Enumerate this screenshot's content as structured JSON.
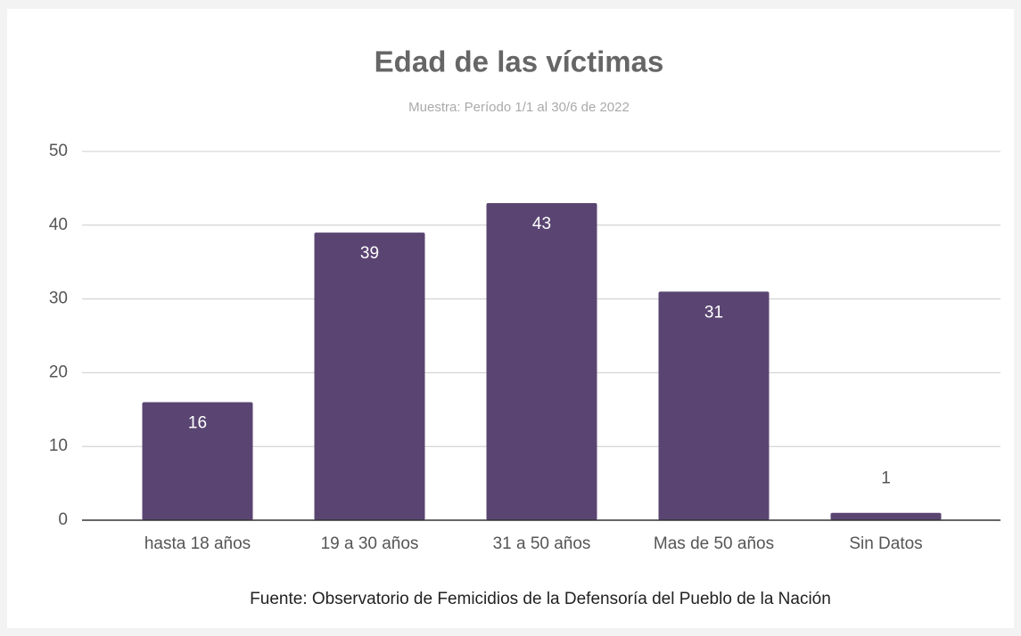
{
  "chart_data": {
    "type": "bar",
    "title": "Edad de las víctimas",
    "subtitle": "Muestra: Período 1/1 al 30/6 de 2022",
    "categories": [
      "hasta 18 años",
      "19 a 30 años",
      "31 a 50 años",
      "Mas de 50 años",
      "Sin Datos"
    ],
    "values": [
      16,
      39,
      43,
      31,
      1
    ],
    "color": "#5a4572",
    "ylim": [
      0,
      50
    ],
    "yticks": [
      0,
      10,
      20,
      30,
      40,
      50
    ],
    "grid": true,
    "source": "Fuente: Observatorio de Femicidios de la Defensoría del Pueblo de la Nación"
  }
}
